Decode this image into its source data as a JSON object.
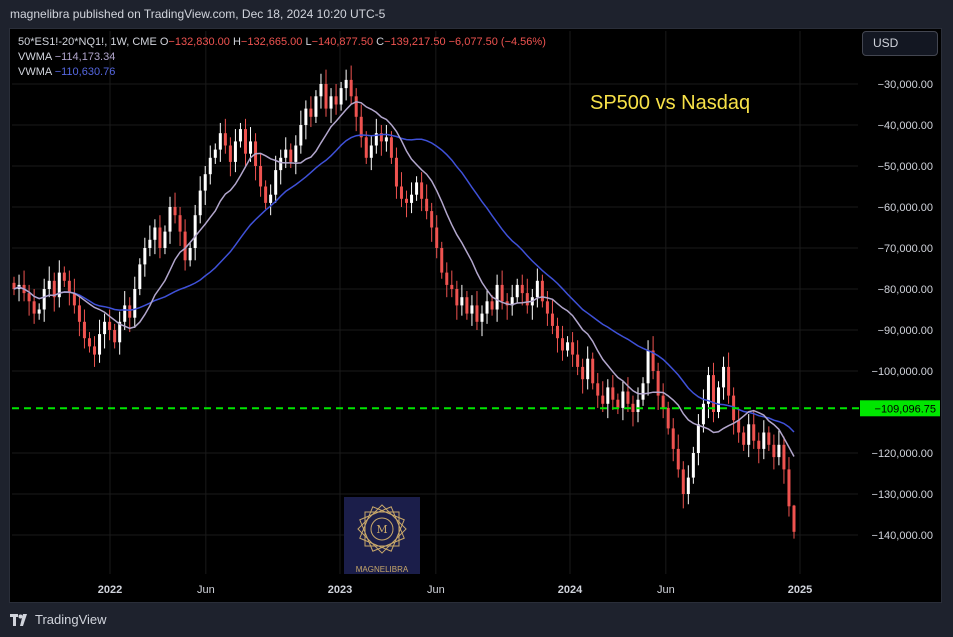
{
  "header": {
    "publish_text": "magnelibra published on TradingView.com, Dec 18, 2024 10:20 UTC-5"
  },
  "legend": {
    "symbol": "50*ES1!-20*NQ1!, 1W, CME",
    "o_label": "O",
    "o_value": "−132,830.00",
    "h_label": "H",
    "h_value": "−132,665.00",
    "l_label": "L",
    "l_value": "−140,877.50",
    "c_label": "C",
    "c_value": "−139,217.50",
    "change": "−6,077.50 (−4.56%)",
    "vwma1_label": "VWMA",
    "vwma1_value": "−114,173.34",
    "vwma2_label": "VWMA",
    "vwma2_value": "−110,630.76"
  },
  "toolbar": {
    "currency": "USD"
  },
  "annotation": {
    "title": "SP500 vs Nasdaq"
  },
  "watermark": {
    "text": "MAGNELIBRA"
  },
  "footer": {
    "brand": "TradingView"
  },
  "colors": {
    "up": "#ffffff",
    "down": "#ef5350",
    "vwma_short": "#b2a6cc",
    "vwma_long": "#3f51d8",
    "hline": "#00e600",
    "grid": "#1a1a1a"
  },
  "chart_data": {
    "type": "candlestick",
    "x_start": "2021-11",
    "x_end": "2025-01",
    "x_ticks": [
      {
        "date": "2022-01",
        "label": "2022",
        "bold": true
      },
      {
        "date": "2022-06",
        "label": "Jun",
        "bold": false
      },
      {
        "date": "2023-01",
        "label": "2023",
        "bold": true
      },
      {
        "date": "2023-06",
        "label": "Jun",
        "bold": false
      },
      {
        "date": "2024-01",
        "label": "2024",
        "bold": true
      },
      {
        "date": "2024-06",
        "label": "Jun",
        "bold": false
      },
      {
        "date": "2025-01",
        "label": "2025",
        "bold": true
      }
    ],
    "y_ticks": [
      {
        "value": -30000,
        "label": "−30,000.00"
      },
      {
        "value": -40000,
        "label": "−40,000.00"
      },
      {
        "value": -50000,
        "label": "−50,000.00"
      },
      {
        "value": -60000,
        "label": "−60,000.00"
      },
      {
        "value": -70000,
        "label": "−70,000.00"
      },
      {
        "value": -80000,
        "label": "−80,000.00"
      },
      {
        "value": -90000,
        "label": "−90,000.00"
      },
      {
        "value": -100000,
        "label": "−100,000.00"
      },
      {
        "value": -120000,
        "label": "−120,000.00"
      },
      {
        "value": -130000,
        "label": "−130,000.00"
      },
      {
        "value": -140000,
        "label": "−140,000.00"
      }
    ],
    "y_range": [
      -145000,
      -26000
    ],
    "horizontal_line": {
      "value": -109096.75,
      "label": "−109,096.75",
      "style": "dashed"
    },
    "close_series": [
      -80000,
      -79000,
      -81000,
      -83000,
      -86000,
      -85000,
      -80000,
      -78000,
      -82000,
      -76000,
      -78000,
      -81000,
      -84000,
      -88000,
      -92000,
      -94000,
      -96000,
      -91000,
      -88000,
      -90000,
      -93000,
      -88000,
      -84000,
      -87000,
      -80000,
      -74000,
      -70000,
      -68000,
      -65000,
      -70000,
      -66000,
      -60000,
      -62000,
      -66000,
      -73000,
      -70000,
      -62000,
      -56000,
      -52000,
      -48000,
      -46000,
      -42000,
      -45000,
      -49000,
      -44000,
      -41000,
      -47000,
      -44000,
      -50000,
      -55000,
      -59000,
      -57000,
      -51000,
      -48000,
      -46000,
      -49000,
      -45000,
      -40000,
      -36000,
      -38000,
      -33000,
      -30000,
      -36000,
      -33000,
      -35000,
      -31000,
      -29000,
      -33000,
      -38000,
      -43000,
      -48000,
      -45000,
      -42000,
      -44000,
      -43000,
      -48000,
      -55000,
      -58000,
      -59000,
      -57000,
      -54000,
      -58000,
      -61000,
      -65000,
      -70000,
      -76000,
      -79000,
      -80000,
      -84000,
      -82000,
      -86000,
      -84000,
      -88000,
      -86000,
      -83000,
      -85000,
      -79000,
      -83000,
      -84000,
      -82000,
      -79000,
      -81000,
      -84000,
      -82000,
      -78000,
      -83000,
      -86000,
      -89000,
      -92000,
      -95000,
      -93000,
      -96000,
      -99000,
      -102000,
      -97000,
      -103000,
      -106000,
      -108000,
      -104000,
      -107000,
      -109000,
      -105000,
      -108000,
      -110000,
      -107000,
      -103000,
      -95000,
      -100000,
      -106000,
      -109000,
      -114000,
      -119000,
      -124000,
      -130000,
      -126000,
      -120000,
      -113000,
      -108000,
      -101000,
      -110000,
      -104000,
      -99000,
      -106000,
      -112000,
      -115000,
      -118000,
      -113000,
      -117000,
      -119000,
      -115000,
      -118000,
      -121000,
      -118000,
      -124000,
      -133000,
      -139217.5
    ],
    "series": [
      {
        "name": "VWMA",
        "value_last": -114173.34
      },
      {
        "name": "VWMA",
        "value_last": -110630.76
      }
    ],
    "last_candle": {
      "open": -132830.0,
      "high": -132665.0,
      "low": -140877.5,
      "close": -139217.5
    }
  }
}
